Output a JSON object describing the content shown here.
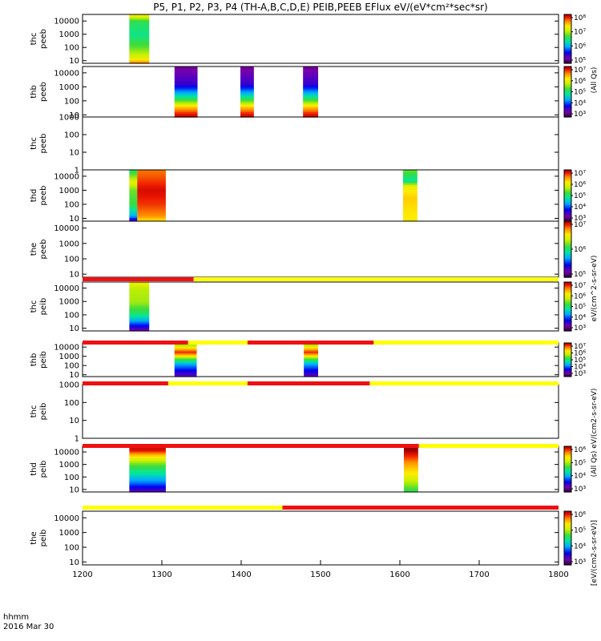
{
  "chart_data": {
    "type": "heatmap",
    "title": "P5, P1, P2, P3, P4 (TH-A,B,C,D,E) PEIB,PEEB EFlux eV/(eV*cm²*sec*sr)",
    "x_axis": {
      "ticks": [
        1200,
        1300,
        1400,
        1500,
        1600,
        1700,
        1800
      ],
      "range": [
        1200,
        1800
      ],
      "label_lines": [
        "hhmm",
        "2016 Mar 30"
      ]
    },
    "panels": [
      {
        "probe": "thc",
        "species": "peeb",
        "yticks": [
          "10000",
          "1000",
          "100",
          "10"
        ],
        "ylog_range": [
          0.8,
          4.5
        ],
        "colorbar": {
          "ticks": [
            "10⁸",
            "10⁷",
            "10⁶",
            "10⁵"
          ],
          "log_range": [
            4.6,
            8.4
          ]
        },
        "bursts": [
          {
            "x0": 1259,
            "x1": 1284,
            "profile": [
              [
                0.8,
                8.0
              ],
              [
                1.2,
                7.3
              ],
              [
                2.0,
                6.8
              ],
              [
                3.0,
                6.4
              ],
              [
                4.0,
                6.6
              ],
              [
                4.5,
                7.5
              ]
            ]
          }
        ]
      },
      {
        "probe": "thb",
        "species": "peeb",
        "yticks": [
          "10000",
          "1000",
          "100",
          "10"
        ],
        "ylog_range": [
          0.85,
          4.45
        ],
        "colorbar": {
          "ticks": [
            "10⁷",
            "10⁶",
            "10⁵",
            "10⁴",
            "10³"
          ],
          "log_range": [
            2.8,
            7.6
          ]
        },
        "bursts": [
          {
            "x0": 1316,
            "x1": 1345,
            "profile": [
              [
                0.85,
                7.5
              ],
              [
                1.2,
                7.2
              ],
              [
                1.6,
                6.6
              ],
              [
                2.0,
                5.6
              ],
              [
                2.6,
                4.5
              ],
              [
                3.2,
                3.6
              ],
              [
                4.45,
                3.2
              ]
            ]
          },
          {
            "x0": 1399,
            "x1": 1416,
            "profile": [
              [
                0.85,
                7.5
              ],
              [
                1.2,
                7.2
              ],
              [
                1.6,
                6.6
              ],
              [
                2.0,
                5.6
              ],
              [
                2.6,
                4.5
              ],
              [
                3.2,
                3.6
              ],
              [
                4.45,
                3.2
              ]
            ]
          },
          {
            "x0": 1478,
            "x1": 1497,
            "profile": [
              [
                0.85,
                7.5
              ],
              [
                1.2,
                7.2
              ],
              [
                1.6,
                6.6
              ],
              [
                2.0,
                5.6
              ],
              [
                2.6,
                4.5
              ],
              [
                3.2,
                3.6
              ],
              [
                4.45,
                3.2
              ]
            ]
          }
        ]
      },
      {
        "probe": "thc",
        "species": "peeb",
        "yticks": [
          "1000",
          "100",
          "10",
          "1"
        ],
        "ylog_range": [
          0.0,
          3.0
        ],
        "colorbar": null,
        "bursts": []
      },
      {
        "probe": "thd",
        "species": "peeb",
        "yticks": [
          "10000",
          "1000",
          "100",
          "10"
        ],
        "ylog_range": [
          0.8,
          4.45
        ],
        "colorbar": {
          "ticks": [
            "10⁷",
            "10⁶",
            "10⁵",
            "10⁴",
            "10³"
          ],
          "log_range": [
            2.8,
            7.6
          ]
        },
        "bursts": [
          {
            "x0": 1259,
            "x1": 1269,
            "profile": [
              [
                0.8,
                3.4
              ],
              [
                1.2,
                4.5
              ],
              [
                2.0,
                5.4
              ],
              [
                3.0,
                5.6
              ],
              [
                3.6,
                6.2
              ],
              [
                4.45,
                5.2
              ]
            ]
          },
          {
            "x0": 1269,
            "x1": 1305,
            "profile": [
              [
                0.8,
                6.4
              ],
              [
                1.2,
                6.9
              ],
              [
                2.0,
                7.2
              ],
              [
                3.0,
                7.4
              ],
              [
                4.0,
                7.1
              ],
              [
                4.45,
                7.0
              ]
            ]
          },
          {
            "x0": 1604,
            "x1": 1622,
            "profile": [
              [
                0.8,
                6.4
              ],
              [
                2.5,
                6.6
              ],
              [
                3.3,
                6.3
              ],
              [
                3.7,
                5.0
              ],
              [
                4.45,
                5.6
              ]
            ]
          }
        ]
      },
      {
        "probe": "the",
        "species": "peeb",
        "yticks": [
          "10000",
          "1000",
          "100",
          "10"
        ],
        "ylog_range": [
          0.8,
          4.45
        ],
        "colorbar": {
          "ticks": [
            "10⁷",
            "10⁶",
            "10⁵"
          ],
          "log_range": [
            4.6,
            7.6
          ]
        },
        "bursts": []
      },
      {
        "probe": "thc",
        "species": "peib",
        "yticks": [
          "10000",
          "1000",
          "100",
          "10"
        ],
        "ylog_range": [
          0.8,
          4.45
        ],
        "colorbar": {
          "ticks": [
            "10⁷",
            "10⁶",
            "10⁵",
            "10⁴",
            "10³"
          ],
          "log_range": [
            2.8,
            7.4
          ]
        },
        "bars": [
          {
            "x0": 1200,
            "x1": 1340,
            "color": "#ee1111"
          },
          {
            "x0": 1340,
            "x1": 1800,
            "color": "#ffff00"
          }
        ],
        "bursts": [
          {
            "x0": 1259,
            "x1": 1284,
            "profile": [
              [
                0.8,
                3.2
              ],
              [
                1.2,
                3.8
              ],
              [
                2.0,
                5.0
              ],
              [
                3.0,
                5.7
              ],
              [
                4.0,
                5.8
              ],
              [
                4.45,
                6.2
              ]
            ]
          }
        ]
      },
      {
        "probe": "thb",
        "species": "peib",
        "yticks": [
          "10000",
          "1000",
          "100",
          "10"
        ],
        "ylog_range": [
          0.8,
          4.45
        ],
        "colorbar": {
          "ticks": [
            "10⁷",
            "10⁶",
            "10⁵",
            "10⁴",
            "10³"
          ],
          "log_range": [
            2.8,
            7.4
          ]
        },
        "bars": [
          {
            "x0": 1200,
            "x1": 1333,
            "color": "#ee1111"
          },
          {
            "x0": 1333,
            "x1": 1408,
            "color": "#ffff00"
          },
          {
            "x0": 1408,
            "x1": 1567,
            "color": "#ee1111"
          },
          {
            "x0": 1567,
            "x1": 1800,
            "color": "#ffff00"
          }
        ],
        "bursts": [
          {
            "x0": 1316,
            "x1": 1344,
            "profile": [
              [
                0.8,
                3.3
              ],
              [
                1.5,
                3.8
              ],
              [
                2.2,
                4.4
              ],
              [
                2.8,
                5.5
              ],
              [
                3.2,
                6.6
              ],
              [
                3.5,
                7.1
              ],
              [
                4.0,
                6.2
              ],
              [
                4.45,
                5.4
              ]
            ]
          },
          {
            "x0": 1479,
            "x1": 1497,
            "profile": [
              [
                0.8,
                3.3
              ],
              [
                1.5,
                3.8
              ],
              [
                2.2,
                4.4
              ],
              [
                2.8,
                5.5
              ],
              [
                3.2,
                6.6
              ],
              [
                3.5,
                7.1
              ],
              [
                4.0,
                6.2
              ],
              [
                4.45,
                5.4
              ]
            ]
          }
        ]
      },
      {
        "probe": "thc",
        "species": "peib",
        "yticks": [
          "1000",
          "100",
          "10",
          "1"
        ],
        "ylog_range": [
          0.0,
          3.0
        ],
        "colorbar": null,
        "bars": [
          {
            "x0": 1200,
            "x1": 1308,
            "color": "#ee1111"
          },
          {
            "x0": 1308,
            "x1": 1408,
            "color": "#ffff00"
          },
          {
            "x0": 1408,
            "x1": 1562,
            "color": "#ee1111"
          },
          {
            "x0": 1562,
            "x1": 1800,
            "color": "#ffff00"
          }
        ],
        "bursts": []
      },
      {
        "probe": "thd",
        "species": "peib",
        "yticks": [
          "10000",
          "1000",
          "100",
          "10"
        ],
        "ylog_range": [
          0.8,
          4.45
        ],
        "colorbar": {
          "ticks": [
            "10⁶",
            "10⁵",
            "10⁴",
            "10³"
          ],
          "log_range": [
            2.8,
            6.3
          ]
        },
        "bars": [
          {
            "x0": 1200,
            "x1": 1624,
            "color": "#ee1111"
          },
          {
            "x0": 1624,
            "x1": 1800,
            "color": "#ffff00"
          }
        ],
        "bursts": [
          {
            "x0": 1259,
            "x1": 1305,
            "profile": [
              [
                0.8,
                3.2
              ],
              [
                1.5,
                3.8
              ],
              [
                2.2,
                4.3
              ],
              [
                3.0,
                4.8
              ],
              [
                3.6,
                5.4
              ],
              [
                4.2,
                6.2
              ],
              [
                4.45,
                6.1
              ]
            ]
          },
          {
            "x0": 1605,
            "x1": 1623,
            "profile": [
              [
                0.8,
                4.6
              ],
              [
                1.5,
                5.0
              ],
              [
                2.2,
                5.4
              ],
              [
                3.0,
                5.7
              ],
              [
                3.6,
                6.0
              ],
              [
                4.2,
                6.3
              ],
              [
                4.45,
                6.3
              ]
            ]
          }
        ]
      },
      {
        "probe": "the",
        "species": "peib",
        "yticks": [
          "10000",
          "1000",
          "100",
          "10"
        ],
        "ylog_range": [
          0.8,
          4.45
        ],
        "colorbar": {
          "ticks": [
            "10⁶",
            "10⁵",
            "10⁴",
            "10³"
          ],
          "log_range": [
            2.8,
            6.3
          ]
        },
        "bars": [
          {
            "x0": 1200,
            "x1": 1452,
            "color": "#ffff00"
          },
          {
            "x0": 1452,
            "x1": 1800,
            "color": "#ee1111"
          }
        ],
        "bursts": []
      }
    ],
    "colorbar_units": [
      "[eV/(cm2-s-sr-eV)]",
      "(All Qs) eV/(cm2-s-sr-eV)",
      "eV/(cm^2-s-sr-eV)",
      "(All Qs)"
    ]
  }
}
